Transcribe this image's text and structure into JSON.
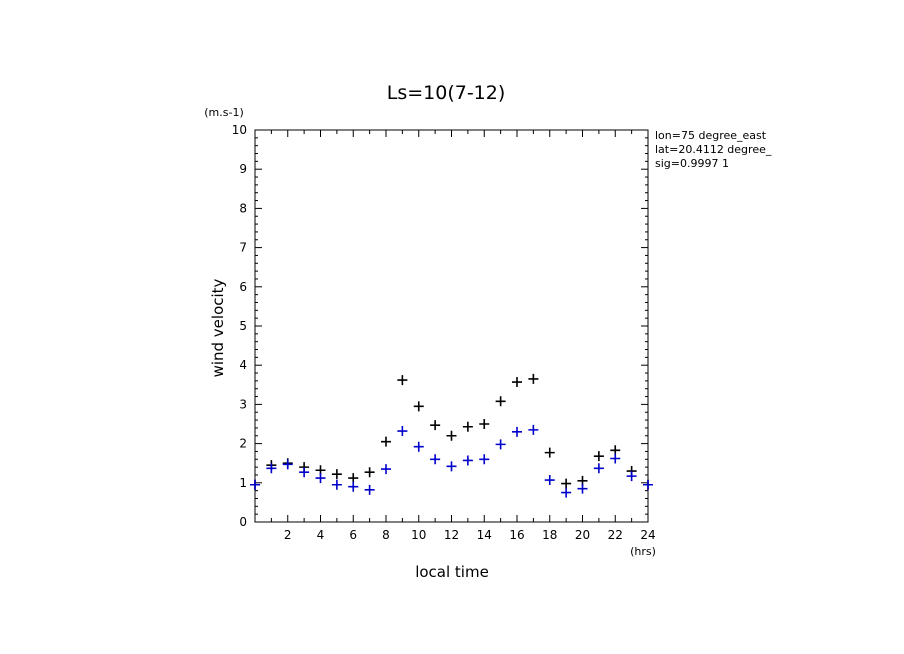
{
  "chart_data": {
    "type": "scatter",
    "title": "Ls=10(7-12)",
    "xlabel": "local time",
    "ylabel": "wind velocity",
    "x_unit": "(hrs)",
    "y_unit": "(m.s-1)",
    "xlim": [
      0,
      24
    ],
    "ylim": [
      0,
      10
    ],
    "x_ticks": [
      "2",
      "4",
      "6",
      "8",
      "10",
      "12",
      "14",
      "16",
      "18",
      "20",
      "22",
      "24"
    ],
    "y_ticks": [
      "0",
      "1",
      "2",
      "3",
      "4",
      "5",
      "6",
      "7",
      "8",
      "9",
      "10"
    ],
    "grid": false,
    "info": [
      "lon=75 degree_east",
      "lat=20.4112 degree_",
      "sig=0.9997 1"
    ],
    "x": [
      0,
      1,
      2,
      3,
      4,
      5,
      6,
      7,
      8,
      9,
      10,
      11,
      12,
      13,
      14,
      15,
      16,
      17,
      18,
      19,
      20,
      21,
      22,
      23,
      24
    ],
    "series": [
      {
        "color": "#000000",
        "marker": "plus",
        "values": [
          0.95,
          1.45,
          1.5,
          1.4,
          1.32,
          1.22,
          1.12,
          1.27,
          2.05,
          3.62,
          2.95,
          2.47,
          2.2,
          2.43,
          2.5,
          3.08,
          3.57,
          3.65,
          1.77,
          0.98,
          1.05,
          1.68,
          1.83,
          1.3,
          0.95
        ]
      },
      {
        "color": "#0000cc",
        "marker": "plus",
        "values": [
          0.95,
          1.37,
          1.47,
          1.27,
          1.12,
          0.95,
          0.9,
          0.82,
          1.35,
          2.32,
          1.92,
          1.6,
          1.42,
          1.57,
          1.6,
          1.98,
          2.3,
          2.35,
          1.07,
          0.75,
          0.85,
          1.37,
          1.62,
          1.17,
          0.95
        ]
      }
    ]
  }
}
